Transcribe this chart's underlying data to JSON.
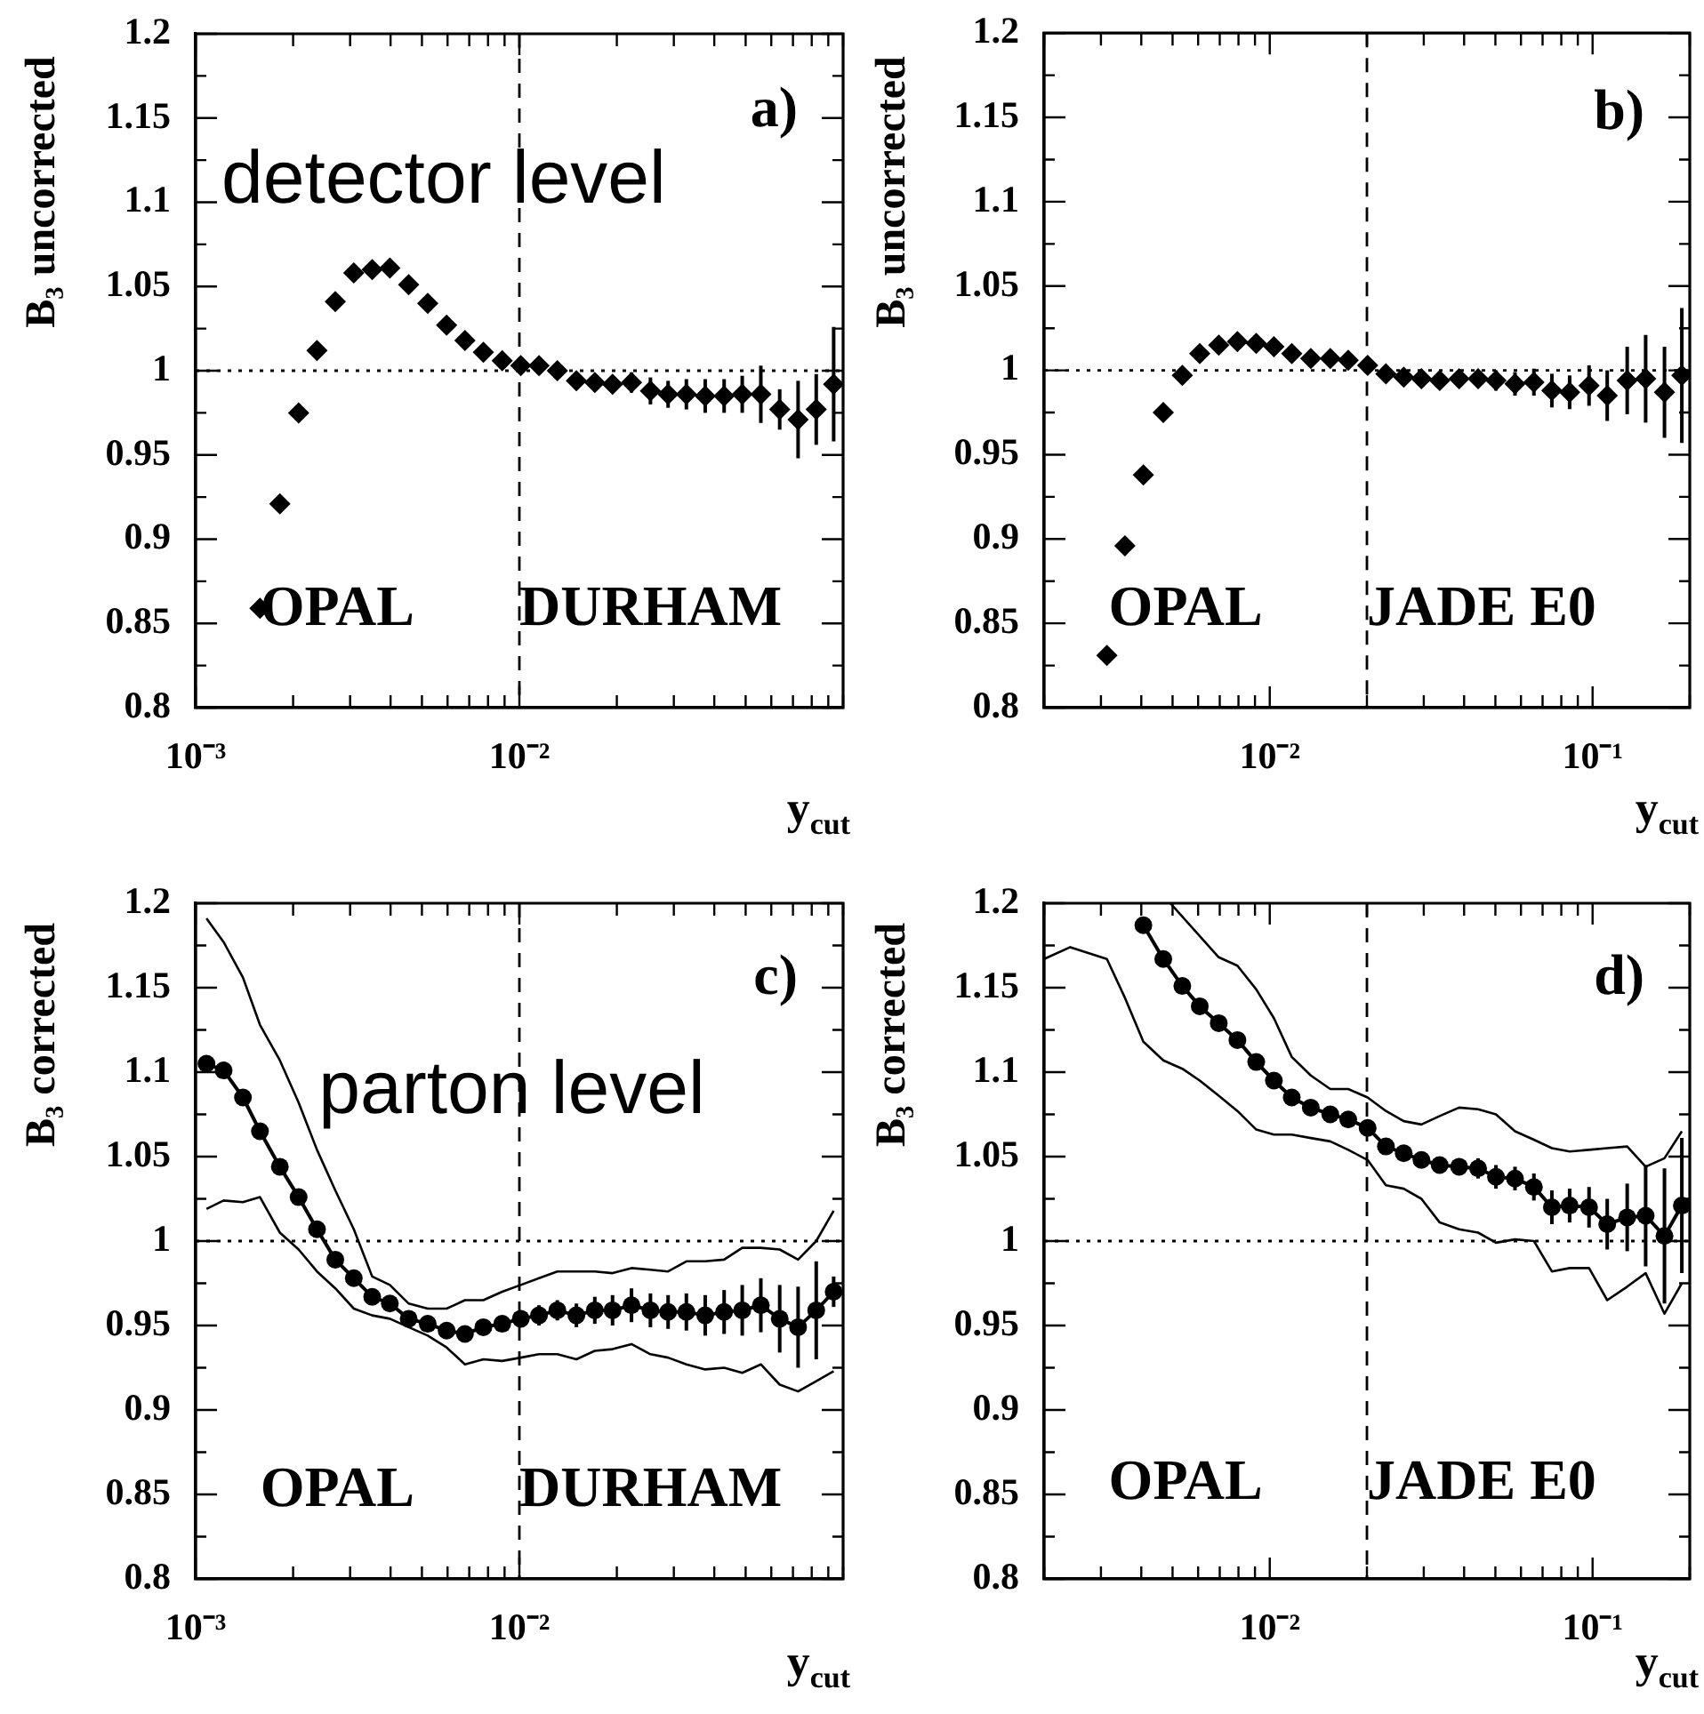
{
  "chart_data": [
    {
      "type": "scatter",
      "ylabel": "B₃ uncorrected",
      "xlabel": "y$_{cut}$",
      "annotations": [
        "a)",
        "detector level",
        "OPAL",
        "DURHAM"
      ],
      "log": "x",
      "marker": "diamond",
      "x": [
        0.00158,
        0.00182,
        0.00208,
        0.00237,
        0.0027,
        0.00308,
        0.00351,
        0.00398,
        0.00455,
        0.00521,
        0.00596,
        0.00679,
        0.00774,
        0.00885,
        0.0101,
        0.0115,
        0.0131,
        0.015,
        0.0171,
        0.0194,
        0.0222,
        0.0254,
        0.0288,
        0.0328,
        0.0375,
        0.0429,
        0.0488,
        0.0557,
        0.0637,
        0.0726,
        0.0826,
        0.0935
      ],
      "series": [
        {
          "color": "#000000",
          "values": [
            0.859,
            0.921,
            0.975,
            1.012,
            1.041,
            1.058,
            1.06,
            1.061,
            1.051,
            1.04,
            1.027,
            1.018,
            1.011,
            1.006,
            1.003,
            1.003,
            1.0,
            0.994,
            0.993,
            0.992,
            0.993,
            0.988,
            0.986,
            0.986,
            0.985,
            0.985,
            0.986,
            0.986,
            0.977,
            0.971,
            0.977,
            0.992
          ],
          "errors": [
            null,
            null,
            null,
            null,
            null,
            null,
            null,
            null,
            null,
            null,
            null,
            null,
            null,
            null,
            null,
            null,
            null,
            null,
            null,
            0.005,
            0.006,
            0.008,
            0.008,
            0.009,
            0.01,
            0.01,
            0.011,
            0.017,
            0.012,
            0.023,
            0.021,
            0.034
          ]
        }
      ],
      "xlim": [
        0.001,
        0.1
      ],
      "ylim": [
        0.8,
        1.2
      ],
      "xticks": [
        {
          "value": 0.001,
          "label": "10⁻³"
        },
        {
          "value": 0.002,
          "label": null
        },
        {
          "value": 0.003,
          "label": null
        },
        {
          "value": 0.004,
          "label": null
        },
        {
          "value": 0.005,
          "label": null
        },
        {
          "value": 0.006,
          "label": null
        },
        {
          "value": 0.007,
          "label": null
        },
        {
          "value": 0.008,
          "label": null
        },
        {
          "value": 0.009,
          "label": null
        },
        {
          "value": 0.01,
          "label": "10⁻²"
        },
        {
          "value": 0.02,
          "label": null
        },
        {
          "value": 0.03,
          "label": null
        },
        {
          "value": 0.04,
          "label": null
        },
        {
          "value": 0.05,
          "label": null
        },
        {
          "value": 0.06,
          "label": null
        },
        {
          "value": 0.07,
          "label": null
        },
        {
          "value": 0.08,
          "label": null
        },
        {
          "value": 0.09,
          "label": null
        },
        {
          "value": 0.1,
          "label": null
        }
      ],
      "yticks": [
        0.8,
        {
          "value": 0.825,
          "label": null
        },
        0.85,
        {
          "value": 0.875,
          "label": null
        },
        0.9,
        {
          "value": 0.925,
          "label": null
        },
        0.95,
        {
          "value": 0.975,
          "label": null
        },
        1,
        {
          "value": 1.025,
          "label": null
        },
        1.05,
        {
          "value": 1.075,
          "label": null
        },
        1.1,
        {
          "value": 1.125,
          "label": null
        },
        1.15,
        {
          "value": 1.175,
          "label": null
        },
        1.2
      ],
      "ref_lines": [
        {
          "axis": "y",
          "value": 1,
          "color": "#000000",
          "line_style": "dotted"
        },
        {
          "axis": "x",
          "value": 0.01,
          "color": "#000000",
          "line_style": "dashed"
        }
      ]
    },
    {
      "type": "scatter",
      "ylabel": "B₃ uncorrected",
      "xlabel": "y$_{cut}$",
      "annotations": [
        "b)",
        "OPAL",
        "JADE E0"
      ],
      "log": "x",
      "marker": "diamond",
      "x": [
        0.00313,
        0.00356,
        0.00406,
        0.00468,
        0.00536,
        0.00607,
        0.00695,
        0.00794,
        0.00908,
        0.0103,
        0.0117,
        0.0134,
        0.0154,
        0.0175,
        0.0201,
        0.0229,
        0.026,
        0.0295,
        0.0336,
        0.0386,
        0.0442,
        0.0502,
        0.0575,
        0.0658,
        0.0748,
        0.0849,
        0.0975,
        0.111,
        0.128,
        0.146,
        0.167,
        0.189
      ],
      "series": [
        {
          "color": "#000000",
          "values": [
            0.831,
            0.896,
            0.938,
            0.975,
            0.997,
            1.01,
            1.015,
            1.017,
            1.016,
            1.014,
            1.01,
            1.007,
            1.007,
            1.006,
            1.003,
            0.998,
            0.996,
            0.995,
            0.994,
            0.995,
            0.995,
            0.994,
            0.992,
            0.993,
            0.988,
            0.987,
            0.991,
            0.985,
            0.994,
            0.995,
            0.987,
            0.997
          ],
          "errors": [
            null,
            null,
            null,
            null,
            null,
            null,
            null,
            null,
            null,
            null,
            null,
            null,
            null,
            null,
            null,
            null,
            null,
            0.004,
            0.004,
            0.005,
            0.005,
            0.006,
            0.007,
            0.008,
            0.01,
            0.01,
            0.012,
            0.015,
            0.02,
            0.026,
            0.027,
            0.04
          ]
        }
      ],
      "xlim": [
        0.002,
        0.2
      ],
      "ylim": [
        0.8,
        1.2
      ],
      "xticks": [
        {
          "value": 0.002,
          "label": null
        },
        {
          "value": 0.003,
          "label": null
        },
        {
          "value": 0.004,
          "label": null
        },
        {
          "value": 0.005,
          "label": null
        },
        {
          "value": 0.006,
          "label": null
        },
        {
          "value": 0.007,
          "label": null
        },
        {
          "value": 0.008,
          "label": null
        },
        {
          "value": 0.009,
          "label": null
        },
        {
          "value": 0.01,
          "label": "10⁻²"
        },
        {
          "value": 0.02,
          "label": null
        },
        {
          "value": 0.03,
          "label": null
        },
        {
          "value": 0.04,
          "label": null
        },
        {
          "value": 0.05,
          "label": null
        },
        {
          "value": 0.06,
          "label": null
        },
        {
          "value": 0.07,
          "label": null
        },
        {
          "value": 0.08,
          "label": null
        },
        {
          "value": 0.09,
          "label": null
        },
        {
          "value": 0.1,
          "label": "10⁻¹"
        },
        {
          "value": 0.2,
          "label": null
        }
      ],
      "yticks": [
        0.8,
        {
          "value": 0.825,
          "label": null
        },
        0.85,
        {
          "value": 0.875,
          "label": null
        },
        0.9,
        {
          "value": 0.925,
          "label": null
        },
        0.95,
        {
          "value": 0.975,
          "label": null
        },
        1,
        {
          "value": 1.025,
          "label": null
        },
        1.05,
        {
          "value": 1.075,
          "label": null
        },
        1.1,
        {
          "value": 1.125,
          "label": null
        },
        1.15,
        {
          "value": 1.175,
          "label": null
        },
        1.2
      ],
      "ref_lines": [
        {
          "axis": "y",
          "value": 1,
          "color": "#000000",
          "line_style": "dotted"
        },
        {
          "axis": "x",
          "value": 0.02,
          "color": "#000000",
          "line_style": "dashed"
        }
      ]
    },
    {
      "type": "scatter",
      "ylabel": "B₃ corrected",
      "xlabel": "y$_{cut}$",
      "annotations": [
        "c)",
        "parton level",
        "OPAL",
        "DURHAM"
      ],
      "log": "x",
      "marker": "circle",
      "x": [
        0.00108,
        0.00122,
        0.0014,
        0.00158,
        0.00182,
        0.00208,
        0.00237,
        0.0027,
        0.00308,
        0.00351,
        0.00398,
        0.00455,
        0.00521,
        0.00596,
        0.00679,
        0.00774,
        0.00885,
        0.0101,
        0.0115,
        0.0131,
        0.015,
        0.0171,
        0.0194,
        0.0222,
        0.0254,
        0.0288,
        0.0328,
        0.0375,
        0.0429,
        0.0488,
        0.0557,
        0.0637,
        0.0726,
        0.0826,
        0.0935
      ],
      "series": [
        {
          "type": "line",
          "color": "#000000",
          "values": [
            1.105,
            1.101,
            1.085,
            1.065,
            1.044,
            1.026,
            1.007,
            0.989,
            0.978,
            0.967,
            0.963,
            0.954,
            0.951,
            0.947,
            0.945,
            0.949,
            0.951,
            0.954,
            0.956,
            0.959,
            0.956,
            0.959,
            0.959,
            0.962,
            0.959,
            0.958,
            0.958,
            0.956,
            0.958,
            0.959,
            0.962,
            0.954,
            0.949,
            0.959,
            0.97
          ],
          "errors": [
            null,
            null,
            null,
            null,
            null,
            null,
            null,
            null,
            null,
            null,
            null,
            null,
            null,
            null,
            null,
            null,
            null,
            0.005,
            0.006,
            0.006,
            0.007,
            0.008,
            0.009,
            0.01,
            0.01,
            0.01,
            0.011,
            0.012,
            0.013,
            0.015,
            0.016,
            0.02,
            0.024,
            0.029,
            0.009
          ]
        },
        {
          "type": "line",
          "color": "#000000",
          "marker": "none",
          "values": [
            1.191,
            1.177,
            1.156,
            1.128,
            1.107,
            1.082,
            1.054,
            1.03,
            1.007,
            0.979,
            0.974,
            0.963,
            0.96,
            0.96,
            0.965,
            0.965,
            0.97,
            0.974,
            0.978,
            0.982,
            0.982,
            0.982,
            0.981,
            0.984,
            0.983,
            0.982,
            0.988,
            0.988,
            0.989,
            0.996,
            0.996,
            0.995,
            0.989,
            1.0,
            1.018
          ]
        },
        {
          "type": "line",
          "color": "#000000",
          "marker": "none",
          "values": [
            1.019,
            1.024,
            1.023,
            1.026,
            1.005,
            0.995,
            0.982,
            0.972,
            0.96,
            0.956,
            0.954,
            0.949,
            0.944,
            0.937,
            0.927,
            0.93,
            0.929,
            0.931,
            0.933,
            0.933,
            0.93,
            0.935,
            0.936,
            0.939,
            0.933,
            0.931,
            0.927,
            0.924,
            0.925,
            0.922,
            0.927,
            0.915,
            0.911,
            0.917,
            0.923
          ]
        }
      ],
      "xlim": [
        0.001,
        0.1
      ],
      "ylim": [
        0.8,
        1.2
      ],
      "xticks": [
        {
          "value": 0.001,
          "label": "10⁻³"
        },
        {
          "value": 0.002,
          "label": null
        },
        {
          "value": 0.003,
          "label": null
        },
        {
          "value": 0.004,
          "label": null
        },
        {
          "value": 0.005,
          "label": null
        },
        {
          "value": 0.006,
          "label": null
        },
        {
          "value": 0.007,
          "label": null
        },
        {
          "value": 0.008,
          "label": null
        },
        {
          "value": 0.009,
          "label": null
        },
        {
          "value": 0.01,
          "label": "10⁻²"
        },
        {
          "value": 0.02,
          "label": null
        },
        {
          "value": 0.03,
          "label": null
        },
        {
          "value": 0.04,
          "label": null
        },
        {
          "value": 0.05,
          "label": null
        },
        {
          "value": 0.06,
          "label": null
        },
        {
          "value": 0.07,
          "label": null
        },
        {
          "value": 0.08,
          "label": null
        },
        {
          "value": 0.09,
          "label": null
        },
        {
          "value": 0.1,
          "label": null
        }
      ],
      "yticks": [
        0.8,
        {
          "value": 0.825,
          "label": null
        },
        0.85,
        {
          "value": 0.875,
          "label": null
        },
        0.9,
        {
          "value": 0.925,
          "label": null
        },
        0.95,
        {
          "value": 0.975,
          "label": null
        },
        1,
        {
          "value": 1.025,
          "label": null
        },
        1.05,
        {
          "value": 1.075,
          "label": null
        },
        1.1,
        {
          "value": 1.125,
          "label": null
        },
        1.15,
        {
          "value": 1.175,
          "label": null
        },
        1.2
      ],
      "ref_lines": [
        {
          "axis": "y",
          "value": 1,
          "color": "#000000",
          "line_style": "dotted"
        },
        {
          "axis": "x",
          "value": 0.01,
          "color": "#000000",
          "line_style": "dashed"
        }
      ]
    },
    {
      "type": "scatter",
      "ylabel": "B₃ corrected",
      "xlabel": "y$_{cut}$",
      "annotations": [
        "d)",
        "OPAL",
        "JADE E0"
      ],
      "log": "x",
      "marker": "circle",
      "x": [
        0.00406,
        0.00468,
        0.00536,
        0.00607,
        0.00695,
        0.00794,
        0.00908,
        0.0103,
        0.0117,
        0.0134,
        0.0154,
        0.0175,
        0.0201,
        0.0229,
        0.026,
        0.0295,
        0.0336,
        0.0386,
        0.0442,
        0.0502,
        0.0575,
        0.0658,
        0.0748,
        0.0849,
        0.0975,
        0.111,
        0.128,
        0.146,
        0.167,
        0.189
      ],
      "series": [
        {
          "type": "line",
          "color": "#000000",
          "values": [
            1.187,
            1.167,
            1.151,
            1.139,
            1.129,
            1.119,
            1.106,
            1.095,
            1.085,
            1.079,
            1.075,
            1.072,
            1.067,
            1.056,
            1.052,
            1.048,
            1.045,
            1.044,
            1.043,
            1.038,
            1.037,
            1.032,
            1.02,
            1.021,
            1.02,
            1.01,
            1.014,
            1.015,
            1.003,
            1.021
          ],
          "errors": [
            null,
            null,
            null,
            null,
            null,
            null,
            null,
            null,
            null,
            null,
            null,
            null,
            null,
            null,
            0.004,
            0.004,
            0.005,
            0.005,
            0.006,
            0.007,
            0.007,
            0.008,
            0.01,
            0.01,
            0.012,
            0.015,
            0.02,
            0.03,
            0.04,
            0.04
          ]
        },
        {
          "type": "line",
          "color": "#000000",
          "marker": "none",
          "x": [
            0.00492,
            0.00695,
            0.00794,
            0.00908,
            0.0103,
            0.0117,
            0.0134,
            0.0154,
            0.0175,
            0.0201,
            0.0229,
            0.026,
            0.0295,
            0.0336,
            0.0386,
            0.0442,
            0.0502,
            0.0575,
            0.0658,
            0.0748,
            0.0849,
            0.0975,
            0.111,
            0.128,
            0.146,
            0.167,
            0.189
          ],
          "values": [
            1.2,
            1.168,
            1.163,
            1.149,
            1.132,
            1.109,
            1.098,
            1.09,
            1.09,
            1.085,
            1.077,
            1.071,
            1.069,
            1.074,
            1.079,
            1.078,
            1.075,
            1.065,
            1.06,
            1.055,
            1.053,
            1.054,
            1.055,
            1.056,
            1.044,
            1.049,
            1.065
          ]
        },
        {
          "type": "line",
          "color": "#000000",
          "marker": "none",
          "x": [
            0.002,
            0.00241,
            0.00313,
            0.00356,
            0.00406,
            0.00468,
            0.00536,
            0.00607,
            0.00695,
            0.00794,
            0.00908,
            0.0103,
            0.0117,
            0.0134,
            0.0154,
            0.0175,
            0.0201,
            0.0229,
            0.026,
            0.0295,
            0.0336,
            0.0386,
            0.0442,
            0.0502,
            0.0575,
            0.0658,
            0.0748,
            0.0849,
            0.0975,
            0.111,
            0.128,
            0.146,
            0.167,
            0.189
          ],
          "values": [
            1.167,
            1.174,
            1.167,
            1.144,
            1.118,
            1.107,
            1.102,
            1.095,
            1.086,
            1.077,
            1.066,
            1.063,
            1.063,
            1.061,
            1.059,
            1.054,
            1.048,
            1.033,
            1.031,
            1.025,
            1.011,
            1.007,
            1.005,
            0.999,
            1.001,
            1.0,
            0.982,
            0.984,
            0.984,
            0.965,
            0.973,
            0.981,
            0.957,
            0.975
          ]
        }
      ],
      "xlim": [
        0.002,
        0.2
      ],
      "ylim": [
        0.8,
        1.2
      ],
      "xticks": [
        {
          "value": 0.002,
          "label": null
        },
        {
          "value": 0.003,
          "label": null
        },
        {
          "value": 0.004,
          "label": null
        },
        {
          "value": 0.005,
          "label": null
        },
        {
          "value": 0.006,
          "label": null
        },
        {
          "value": 0.007,
          "label": null
        },
        {
          "value": 0.008,
          "label": null
        },
        {
          "value": 0.009,
          "label": null
        },
        {
          "value": 0.01,
          "label": "10⁻²"
        },
        {
          "value": 0.02,
          "label": null
        },
        {
          "value": 0.03,
          "label": null
        },
        {
          "value": 0.04,
          "label": null
        },
        {
          "value": 0.05,
          "label": null
        },
        {
          "value": 0.06,
          "label": null
        },
        {
          "value": 0.07,
          "label": null
        },
        {
          "value": 0.08,
          "label": null
        },
        {
          "value": 0.09,
          "label": null
        },
        {
          "value": 0.1,
          "label": "10⁻¹"
        },
        {
          "value": 0.2,
          "label": null
        }
      ],
      "yticks": [
        0.8,
        {
          "value": 0.825,
          "label": null
        },
        0.85,
        {
          "value": 0.875,
          "label": null
        },
        0.9,
        {
          "value": 0.925,
          "label": null
        },
        0.95,
        {
          "value": 0.975,
          "label": null
        },
        1,
        {
          "value": 1.025,
          "label": null
        },
        1.05,
        {
          "value": 1.075,
          "label": null
        },
        1.1,
        {
          "value": 1.125,
          "label": null
        },
        1.15,
        {
          "value": 1.175,
          "label": null
        },
        1.2
      ],
      "ref_lines": [
        {
          "axis": "y",
          "value": 1,
          "color": "#000000",
          "line_style": "dotted"
        },
        {
          "axis": "x",
          "value": 0.02,
          "color": "#000000",
          "line_style": "dashed"
        }
      ]
    }
  ]
}
